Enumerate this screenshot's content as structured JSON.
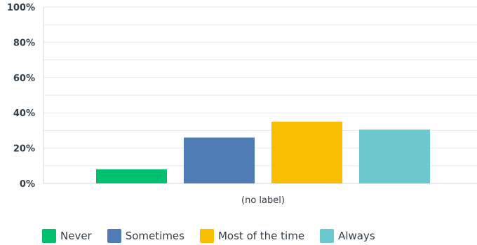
{
  "chart_data": {
    "type": "bar",
    "categories": [
      "(no label)"
    ],
    "series": [
      {
        "name": "Never",
        "values": [
          8
        ],
        "color": "#00bf6f"
      },
      {
        "name": "Sometimes",
        "values": [
          26
        ],
        "color": "#507cb6"
      },
      {
        "name": "Most of the time",
        "values": [
          35
        ],
        "color": "#f9be00"
      },
      {
        "name": "Always",
        "values": [
          30.5
        ],
        "color": "#6bc8cd"
      }
    ],
    "yticks": [
      "0%",
      "20%",
      "40%",
      "60%",
      "80%",
      "100%"
    ],
    "ylim": [
      0,
      100
    ],
    "grid": true,
    "legend_position": "bottom-left"
  }
}
